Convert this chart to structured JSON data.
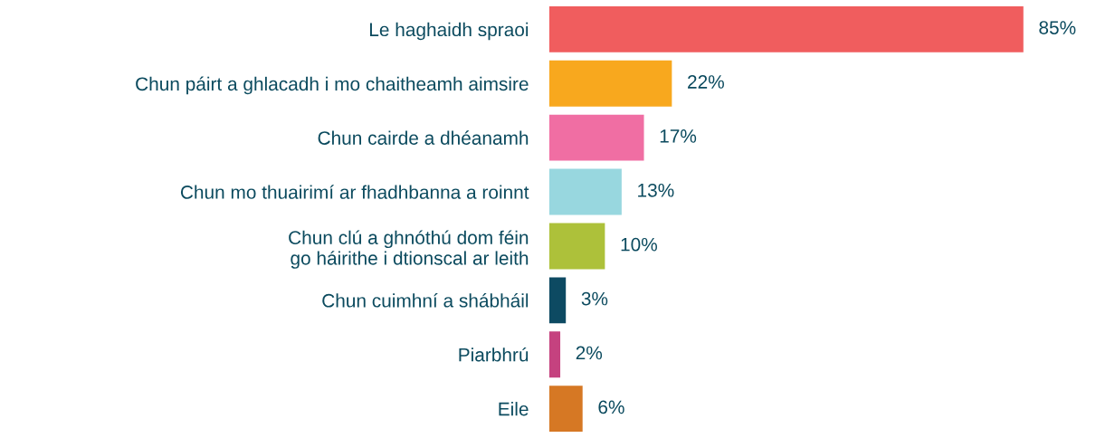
{
  "chart_data": {
    "type": "bar",
    "orientation": "horizontal",
    "categories": [
      "Le haghaidh spraoi",
      "Chun páirt a ghlacadh i mo chaitheamh aimsire",
      "Chun cairde a dhéanamh",
      "Chun mo thuairimí ar fhadhbanna a roinnt",
      "Chun clú a ghnóthú dom féin\ngo háirithe i dtionscal ar leith",
      "Chun cuimhní a shábháil",
      "Piarbhrú",
      "Eile"
    ],
    "values": [
      85,
      22,
      17,
      13,
      10,
      3,
      2,
      6
    ],
    "value_labels": [
      "85%",
      "22%",
      "17%",
      "13%",
      "10%",
      "3%",
      "2%",
      "6%"
    ],
    "colors": [
      "#f05d5e",
      "#f8a81e",
      "#f06ea3",
      "#98d7df",
      "#adc13a",
      "#0d4a62",
      "#c5427f",
      "#d67824"
    ],
    "grid": false,
    "legend": false
  }
}
